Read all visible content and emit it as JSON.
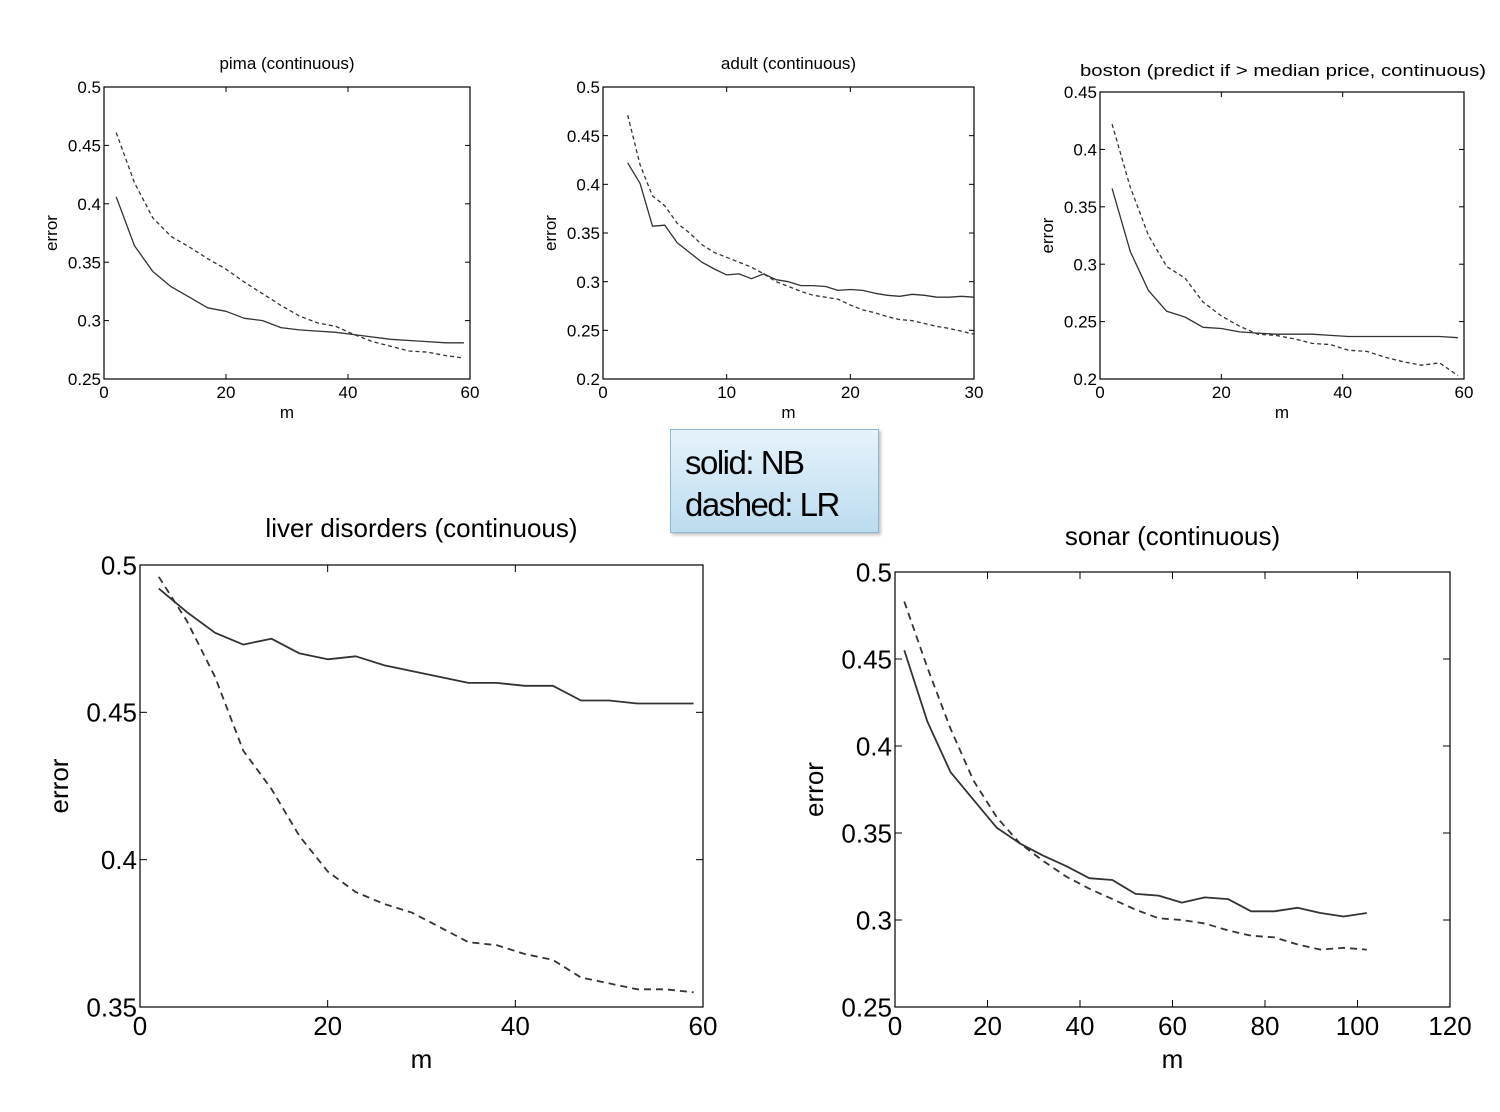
{
  "legend": {
    "solid": "solid: NB",
    "dashed": "dashed: LR"
  },
  "chart_data": [
    {
      "type": "line",
      "title": "pima (continuous)",
      "xlabel": "m",
      "ylabel": "error",
      "xlim": [
        0,
        60
      ],
      "ylim": [
        0.25,
        0.5
      ],
      "xticks": [
        0,
        20,
        40,
        60
      ],
      "yticks": [
        0.25,
        0.3,
        0.35,
        0.4,
        0.45,
        0.5
      ],
      "series": [
        {
          "style": "solid",
          "x": [
            2,
            5,
            8,
            11,
            14,
            17,
            20,
            23,
            26,
            29,
            32,
            35,
            38,
            41,
            44,
            47,
            50,
            53,
            56,
            59
          ],
          "y": [
            0.406,
            0.364,
            0.342,
            0.329,
            0.32,
            0.311,
            0.308,
            0.302,
            0.3,
            0.294,
            0.292,
            0.291,
            0.29,
            0.288,
            0.286,
            0.284,
            0.283,
            0.282,
            0.281,
            0.281
          ]
        },
        {
          "style": "dashed",
          "x": [
            2,
            5,
            8,
            11,
            14,
            17,
            20,
            23,
            26,
            29,
            32,
            35,
            38,
            41,
            44,
            47,
            50,
            53,
            56,
            59
          ],
          "y": [
            0.461,
            0.418,
            0.388,
            0.372,
            0.363,
            0.353,
            0.344,
            0.333,
            0.323,
            0.313,
            0.304,
            0.298,
            0.295,
            0.288,
            0.282,
            0.278,
            0.274,
            0.273,
            0.27,
            0.268
          ]
        }
      ]
    },
    {
      "type": "line",
      "title": "adult (continuous)",
      "xlabel": "m",
      "ylabel": "error",
      "xlim": [
        0,
        30
      ],
      "ylim": [
        0.2,
        0.5
      ],
      "xticks": [
        0,
        10,
        20,
        30
      ],
      "yticks": [
        0.2,
        0.25,
        0.3,
        0.35,
        0.4,
        0.45,
        0.5
      ],
      "series": [
        {
          "style": "solid",
          "x": [
            2,
            3,
            4,
            5,
            6,
            7,
            8,
            9,
            10,
            11,
            12,
            13,
            14,
            15,
            16,
            17,
            18,
            19,
            20,
            21,
            22,
            23,
            24,
            25,
            26,
            27,
            28,
            29,
            30
          ],
          "y": [
            0.422,
            0.401,
            0.357,
            0.358,
            0.34,
            0.33,
            0.32,
            0.313,
            0.307,
            0.308,
            0.303,
            0.308,
            0.302,
            0.3,
            0.296,
            0.296,
            0.295,
            0.291,
            0.292,
            0.291,
            0.288,
            0.286,
            0.285,
            0.287,
            0.286,
            0.284,
            0.284,
            0.285,
            0.284
          ]
        },
        {
          "style": "dashed",
          "x": [
            2,
            3,
            4,
            5,
            6,
            7,
            8,
            9,
            10,
            11,
            12,
            13,
            14,
            15,
            16,
            17,
            18,
            19,
            20,
            21,
            22,
            23,
            24,
            25,
            26,
            27,
            28,
            29,
            30
          ],
          "y": [
            0.471,
            0.42,
            0.388,
            0.378,
            0.36,
            0.35,
            0.338,
            0.33,
            0.325,
            0.32,
            0.315,
            0.308,
            0.3,
            0.295,
            0.29,
            0.286,
            0.284,
            0.282,
            0.276,
            0.271,
            0.268,
            0.264,
            0.261,
            0.26,
            0.257,
            0.254,
            0.252,
            0.249,
            0.246
          ]
        }
      ]
    },
    {
      "type": "line",
      "title": "boston (predict if > median price, continuous)",
      "xlabel": "m",
      "ylabel": "error",
      "xlim": [
        0,
        60
      ],
      "ylim": [
        0.2,
        0.45
      ],
      "xticks": [
        0,
        20,
        40,
        60
      ],
      "yticks": [
        0.2,
        0.25,
        0.3,
        0.35,
        0.4,
        0.45
      ],
      "series": [
        {
          "style": "solid",
          "x": [
            2,
            5,
            8,
            11,
            14,
            17,
            20,
            23,
            26,
            29,
            32,
            35,
            38,
            41,
            44,
            47,
            50,
            53,
            56,
            59
          ],
          "y": [
            0.366,
            0.311,
            0.277,
            0.259,
            0.254,
            0.245,
            0.244,
            0.241,
            0.24,
            0.239,
            0.239,
            0.239,
            0.238,
            0.237,
            0.237,
            0.237,
            0.237,
            0.237,
            0.237,
            0.236
          ]
        },
        {
          "style": "dashed",
          "x": [
            2,
            5,
            8,
            11,
            14,
            17,
            20,
            23,
            26,
            29,
            32,
            35,
            38,
            41,
            44,
            47,
            50,
            53,
            56,
            59
          ],
          "y": [
            0.422,
            0.367,
            0.325,
            0.298,
            0.288,
            0.267,
            0.255,
            0.246,
            0.239,
            0.238,
            0.235,
            0.231,
            0.23,
            0.225,
            0.224,
            0.219,
            0.215,
            0.212,
            0.214,
            0.203
          ]
        }
      ]
    },
    {
      "type": "line",
      "title": "liver disorders (continuous)",
      "xlabel": "m",
      "ylabel": "error",
      "xlim": [
        0,
        60
      ],
      "ylim": [
        0.35,
        0.5
      ],
      "xticks": [
        0,
        20,
        40,
        60
      ],
      "yticks": [
        0.35,
        0.4,
        0.45,
        0.5
      ],
      "series": [
        {
          "style": "solid",
          "x": [
            2,
            5,
            8,
            11,
            14,
            17,
            20,
            23,
            26,
            29,
            32,
            35,
            38,
            41,
            44,
            47,
            50,
            53,
            56,
            59
          ],
          "y": [
            0.492,
            0.484,
            0.477,
            0.473,
            0.475,
            0.47,
            0.468,
            0.469,
            0.466,
            0.464,
            0.462,
            0.46,
            0.46,
            0.459,
            0.459,
            0.454,
            0.454,
            0.453,
            0.453,
            0.453
          ]
        },
        {
          "style": "dashed",
          "x": [
            2,
            5,
            8,
            11,
            14,
            17,
            20,
            23,
            26,
            29,
            32,
            35,
            38,
            41,
            44,
            47,
            50,
            53,
            56,
            59
          ],
          "y": [
            0.496,
            0.481,
            0.462,
            0.437,
            0.424,
            0.408,
            0.396,
            0.389,
            0.385,
            0.382,
            0.377,
            0.372,
            0.371,
            0.368,
            0.366,
            0.36,
            0.358,
            0.356,
            0.356,
            0.355
          ]
        }
      ]
    },
    {
      "type": "line",
      "title": "sonar (continuous)",
      "xlabel": "m",
      "ylabel": "error",
      "xlim": [
        0,
        120
      ],
      "ylim": [
        0.25,
        0.5
      ],
      "xticks": [
        0,
        20,
        40,
        60,
        80,
        100,
        120
      ],
      "yticks": [
        0.25,
        0.3,
        0.35,
        0.4,
        0.45,
        0.5
      ],
      "series": [
        {
          "style": "solid",
          "x": [
            2,
            7,
            12,
            17,
            22,
            27,
            32,
            37,
            42,
            47,
            52,
            57,
            62,
            67,
            72,
            77,
            82,
            87,
            92,
            97,
            102
          ],
          "y": [
            0.455,
            0.414,
            0.385,
            0.369,
            0.353,
            0.344,
            0.337,
            0.331,
            0.324,
            0.323,
            0.315,
            0.314,
            0.31,
            0.313,
            0.312,
            0.305,
            0.305,
            0.307,
            0.304,
            0.302,
            0.304
          ]
        },
        {
          "style": "dashed",
          "x": [
            2,
            7,
            12,
            17,
            22,
            27,
            32,
            37,
            42,
            47,
            52,
            57,
            62,
            67,
            72,
            77,
            82,
            87,
            92,
            97,
            102
          ],
          "y": [
            0.483,
            0.445,
            0.41,
            0.38,
            0.359,
            0.344,
            0.334,
            0.325,
            0.318,
            0.312,
            0.306,
            0.301,
            0.3,
            0.298,
            0.294,
            0.291,
            0.29,
            0.286,
            0.283,
            0.284,
            0.283
          ]
        }
      ]
    }
  ]
}
